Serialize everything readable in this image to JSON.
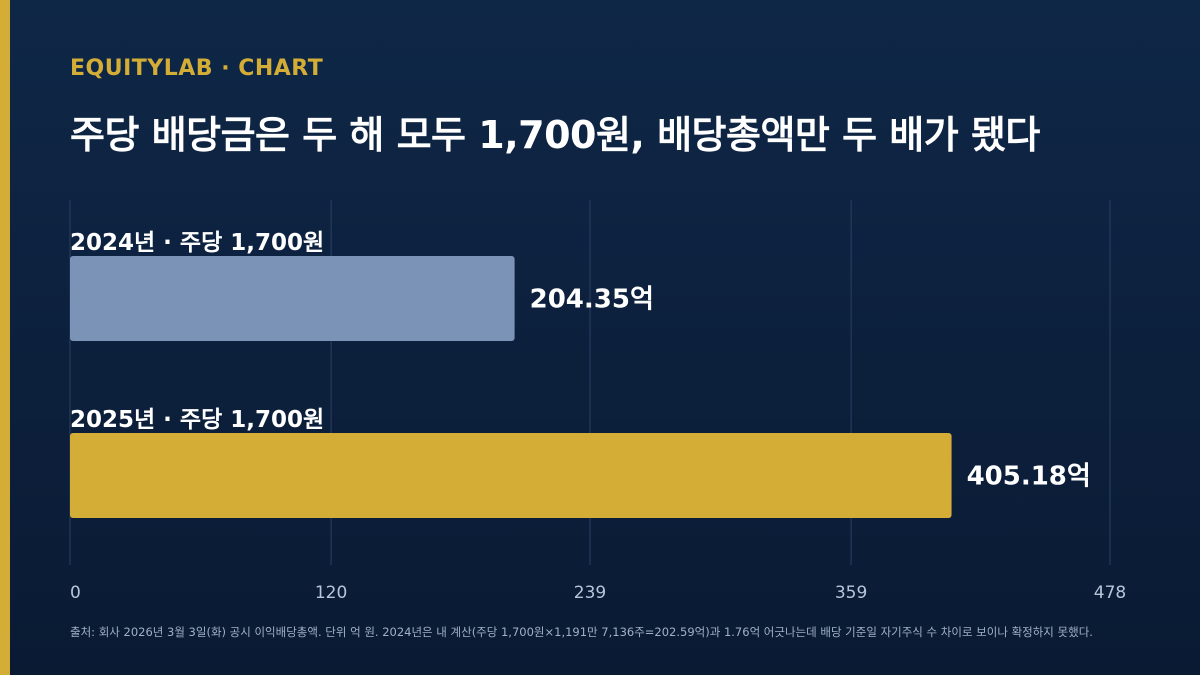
{
  "brand": "EQUITYLAB · CHART",
  "title": "주당 배당금은 두 해 모두 1,700원, 배당총액만 두 배가 됐다",
  "source": "출처: 회사 2026년 3월 3일(화) 공시 이익배당총액. 단위 억 원. 2024년은 내 계산(주당 1,700원×1,191만 7,136주=202.59억)과 1.76억 어긋나는데 배당 기준일 자기주식 수 차이로 보이나 확정하지 못했다.",
  "colors": {
    "background": "#0c2140",
    "accent": "#d4ad37",
    "bar_2024": "#7b93b6",
    "bar_2025": "#d4ad37",
    "grid": "#2a4063",
    "tick_text": "#b8c6da"
  },
  "chart_data": {
    "type": "bar",
    "orientation": "horizontal",
    "categories": [
      "2024년 · 주당 1,700원",
      "2025년 · 주당 1,700원"
    ],
    "values": [
      204.35,
      405.18
    ],
    "value_labels": [
      "204.35억",
      "405.18억"
    ],
    "unit": "억",
    "xlim": [
      0,
      478
    ],
    "xticks": [
      "0",
      "120",
      "239",
      "359",
      "478"
    ],
    "grid": true
  }
}
